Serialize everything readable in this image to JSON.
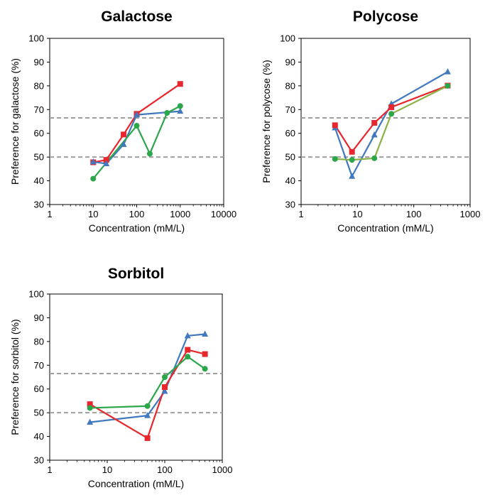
{
  "chart_data": [
    {
      "type": "line",
      "title": "Galactose",
      "xlabel": "Concentration (mM/L)",
      "ylabel": "Preference for galactose  (%)",
      "x_scale": "log",
      "xlim": [
        1,
        10000
      ],
      "ylim": [
        30,
        100
      ],
      "x_ticks": [
        1,
        10,
        100,
        1000,
        10000
      ],
      "y_ticks": [
        30,
        40,
        50,
        60,
        70,
        80,
        90,
        100
      ],
      "reference_lines": [
        50,
        66.5
      ],
      "grid": false,
      "legend": "none",
      "series": [
        {
          "color": "#e8262d",
          "marker": "square",
          "x": [
            10,
            20,
            50,
            100,
            1000
          ],
          "y": [
            47.8,
            48.8,
            59.5,
            68.2,
            80.8
          ]
        },
        {
          "color": "#4178be",
          "marker": "triangle",
          "x": [
            10,
            20,
            50,
            100,
            1000
          ],
          "y": [
            48.0,
            47.2,
            55.3,
            67.8,
            69.3
          ]
        },
        {
          "color": "#2ca64a",
          "marker": "circle",
          "x": [
            10,
            100,
            200,
            500,
            1000
          ],
          "y": [
            40.9,
            63.2,
            51.4,
            68.6,
            71.5
          ]
        }
      ]
    },
    {
      "type": "line",
      "title": "Polycose",
      "xlabel": "Concentration (mM/L)",
      "ylabel": "Preference for polycose (%)",
      "x_scale": "log",
      "xlim": [
        1,
        1000
      ],
      "ylim": [
        30,
        100
      ],
      "x_ticks": [
        1,
        10,
        100,
        1000
      ],
      "y_ticks": [
        30,
        40,
        50,
        60,
        70,
        80,
        90,
        100
      ],
      "reference_lines": [
        50,
        66.5
      ],
      "grid": false,
      "legend": "none",
      "series": [
        {
          "color": "#4178be",
          "marker": "triangle",
          "x": [
            4,
            8,
            20,
            40,
            400
          ],
          "y": [
            62.3,
            41.9,
            59.3,
            72.4,
            85.9
          ]
        },
        {
          "color": "#e8262d",
          "marker": "square",
          "x": [
            4,
            8,
            20,
            40,
            400
          ],
          "y": [
            63.4,
            52.2,
            64.4,
            71.0,
            80.1
          ]
        },
        {
          "color": "#2ca64a",
          "marker": "circle",
          "line_color": "#8cb145",
          "x": [
            4,
            8,
            20,
            40,
            400
          ],
          "y": [
            49.2,
            48.8,
            49.5,
            68.2,
            80.0
          ]
        }
      ]
    },
    {
      "type": "line",
      "title": "Sorbitol",
      "xlabel": "Concentration (mM/L)",
      "ylabel": "Preference for sorbitol (%)",
      "x_scale": "log",
      "xlim": [
        1,
        1000
      ],
      "ylim": [
        30,
        100
      ],
      "x_ticks": [
        1,
        10,
        100,
        1000
      ],
      "y_ticks": [
        30,
        40,
        50,
        60,
        70,
        80,
        90,
        100
      ],
      "reference_lines": [
        50,
        66.5
      ],
      "grid": false,
      "legend": "none",
      "series": [
        {
          "color": "#4178be",
          "marker": "triangle",
          "x": [
            5,
            50,
            100,
            250,
            500
          ],
          "y": [
            46.0,
            48.8,
            59.0,
            82.4,
            83.1
          ]
        },
        {
          "color": "#e8262d",
          "marker": "square",
          "x": [
            5,
            50,
            100,
            250,
            500
          ],
          "y": [
            53.6,
            39.3,
            60.8,
            76.5,
            74.7
          ]
        },
        {
          "color": "#2ca64a",
          "marker": "circle",
          "x": [
            5,
            50,
            100,
            250,
            500
          ],
          "y": [
            52.0,
            52.8,
            65.0,
            73.6,
            68.5
          ]
        }
      ]
    }
  ]
}
